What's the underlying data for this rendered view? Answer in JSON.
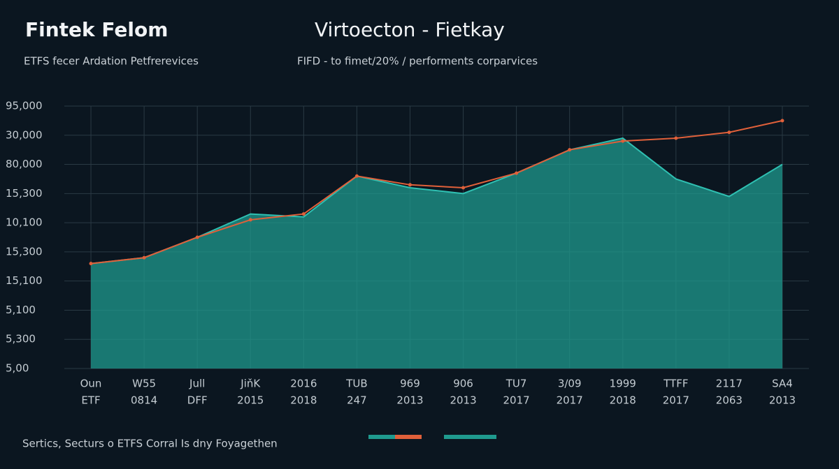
{
  "chart_data": {
    "type": "area-line",
    "title": "Fintek Felom",
    "title2": "Virtoecton - Fietkay",
    "subtitle": "ETFS fecer Ardation Petfrerevices",
    "subtitle2": "FIFD - to fimet/20% / performents corparvices",
    "footer": "Sertics, Secturs o ETFS Corral Is dny Foyagethen",
    "categories": [
      [
        "Oun",
        "ETF"
      ],
      [
        "W55",
        "0814"
      ],
      [
        "Jull",
        "DFF"
      ],
      [
        "JiňK",
        "2015"
      ],
      [
        "2016",
        "2018"
      ],
      [
        "TUB",
        "247"
      ],
      [
        "969",
        "2013"
      ],
      [
        "906",
        "2013"
      ],
      [
        "TU7",
        "2017"
      ],
      [
        "3/09",
        "2017"
      ],
      [
        "1999",
        "2018"
      ],
      [
        "TTFF",
        "2017"
      ],
      [
        "2117",
        "2063"
      ],
      [
        "SA4",
        "2013"
      ]
    ],
    "series": [
      {
        "color": "#1f9a8e",
        "values": [
          3.6,
          3.8,
          4.5,
          5.3,
          5.2,
          6.6,
          6.2,
          6.0,
          6.7,
          7.5,
          7.9,
          6.5,
          5.9,
          7.0
        ]
      },
      {
        "color": "#e0603a",
        "values": [
          3.6,
          3.8,
          4.5,
          5.1,
          5.3,
          6.6,
          6.3,
          6.2,
          6.7,
          7.5,
          7.8,
          7.9,
          8.1,
          8.5
        ]
      }
    ],
    "ylim": [
      0,
      9
    ],
    "yticks": [
      {
        "value": 9,
        "label": "95,000"
      },
      {
        "value": 8,
        "label": "30,000"
      },
      {
        "value": 7,
        "label": "80,000"
      },
      {
        "value": 6,
        "label": "15,300"
      },
      {
        "value": 5,
        "label": "10,100"
      },
      {
        "value": 4,
        "label": "15,300"
      },
      {
        "value": 3,
        "label": "15,100"
      },
      {
        "value": 2,
        "label": "5,100"
      },
      {
        "value": 1,
        "label": "5,300"
      },
      {
        "value": 0,
        "label": "5,00"
      }
    ],
    "grid": true
  }
}
